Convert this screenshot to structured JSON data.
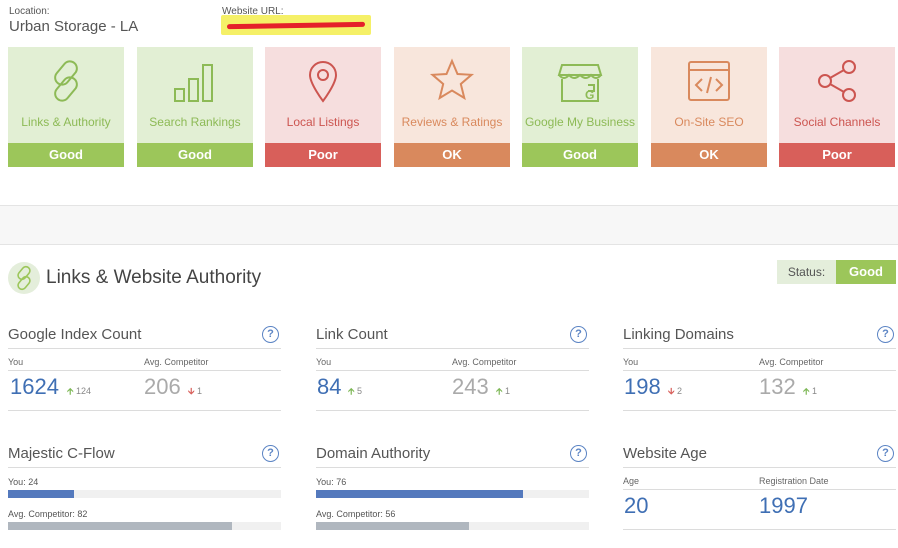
{
  "header": {
    "location_label": "Location:",
    "location_value": "Urban Storage - LA",
    "website_label": "Website URL:"
  },
  "categories": [
    {
      "name": "Links & Authority",
      "status": "Good",
      "icon": "link-icon"
    },
    {
      "name": "Search Rankings",
      "status": "Good",
      "icon": "bar-chart-icon"
    },
    {
      "name": "Local Listings",
      "status": "Poor",
      "icon": "map-pin-icon"
    },
    {
      "name": "Reviews & Ratings",
      "status": "OK",
      "icon": "star-icon"
    },
    {
      "name": "Google My Business",
      "status": "Good",
      "icon": "storefront-icon"
    },
    {
      "name": "On-Site SEO",
      "status": "OK",
      "icon": "code-window-icon"
    },
    {
      "name": "Social Channels",
      "status": "Poor",
      "icon": "share-icon"
    }
  ],
  "section": {
    "title": "Links & Website Authority",
    "status_label": "Status:",
    "status_value": "Good"
  },
  "metrics": {
    "google_index": {
      "title": "Google Index Count",
      "you_label": "You",
      "avg_label": "Avg. Competitor",
      "you": "1624",
      "you_delta": "124",
      "avg": "206",
      "avg_delta": "1"
    },
    "link_count": {
      "title": "Link Count",
      "you_label": "You",
      "avg_label": "Avg. Competitor",
      "you": "84",
      "you_delta": "5",
      "avg": "243",
      "avg_delta": "1"
    },
    "linking_domains": {
      "title": "Linking Domains",
      "you_label": "You",
      "avg_label": "Avg. Competitor",
      "you": "198",
      "you_delta": "2",
      "avg": "132",
      "avg_delta": "1"
    },
    "majestic": {
      "title": "Majestic C-Flow",
      "you_label": "You: 24",
      "avg_label": "Avg. Competitor: 82",
      "you_value": 24,
      "avg_value": 82,
      "max": 100
    },
    "domain_authority": {
      "title": "Domain Authority",
      "you_label": "You: 76",
      "avg_label": "Avg. Competitor: 56",
      "you_value": 76,
      "avg_value": 56,
      "max": 100
    },
    "website_age": {
      "title": "Website Age",
      "age_label": "Age",
      "reg_label": "Registration Date",
      "age": "20",
      "reg": "1997"
    }
  },
  "help_glyph": "?",
  "colors": {
    "good": "#9cc65a",
    "poor": "#d85f5a",
    "ok": "#d9895d",
    "accent": "#3f6fb4"
  }
}
